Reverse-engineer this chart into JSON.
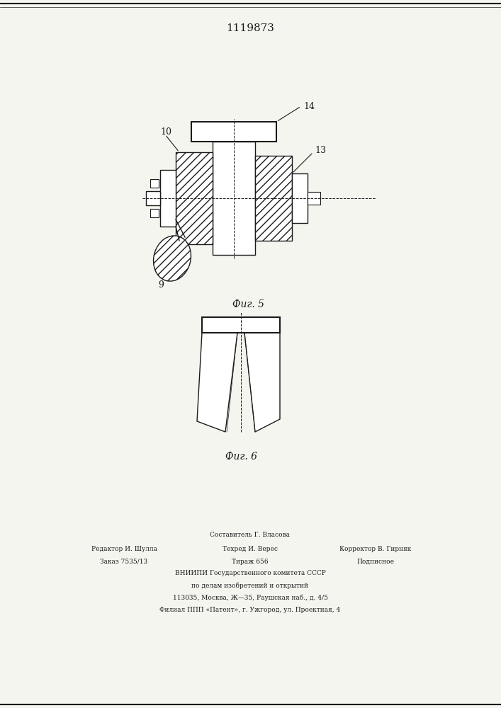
{
  "title": "1119873",
  "fig5_label": "Фиг. 5",
  "fig6_label": "Фиг. 6",
  "label_9": "9",
  "label_10": "10",
  "label_13": "13",
  "label_14": "14",
  "footer_line1": "Составитель Г. Власова",
  "footer_line2_left": "Редактор И. Шулла",
  "footer_line2_mid": "Техред И. Верес",
  "footer_line2_right": "Корректор В. Гирняк",
  "footer_line3_left": "Заказ 7535/13",
  "footer_line3_mid": "Тираж 656",
  "footer_line3_right": "Подписное",
  "footer_line4": "ВНИИПИ Государственного комитета СССР",
  "footer_line5": "по делам изобретений и открытий",
  "footer_line6": "113035, Москва, Ж—35, Раушская наб., д. 4/5",
  "footer_line7": "Филиал ППП «Патент», г. Ужгород, ул. Проектная, 4",
  "bg_color": "#f5f5f0",
  "line_color": "#1a1a1a",
  "hatch_color": "#1a1a1a"
}
